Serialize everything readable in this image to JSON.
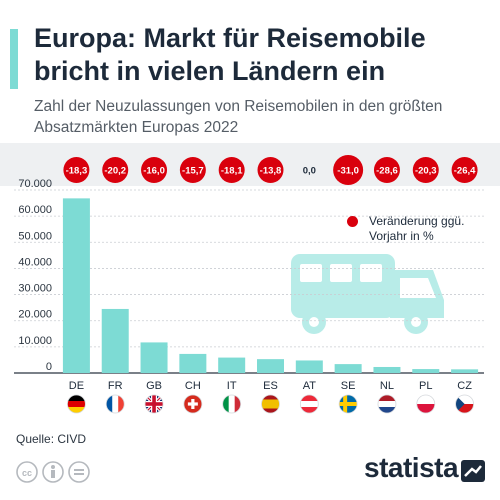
{
  "title": "Europa: Markt für Reisemobile bricht in vielen Ländern ein",
  "subtitle": "Zahl der Neuzulassungen von Reisemobilen in den größten Absatzmärkten Europas 2022",
  "legend_text": "Veränderung ggü. Vorjahr in %",
  "source": "Quelle: CIVD",
  "brand": "statista",
  "icons": {
    "license": [
      "creative-commons-icon",
      "attribution-icon",
      "no-derivatives-icon"
    ],
    "illustration": "camper-van-icon",
    "logo": "statista-logo-icon"
  },
  "colors": {
    "bar": "#7ddbd4",
    "negative_badge": "#d9000d",
    "neutral_badge_text": "#1d2a3a",
    "band": "#eef0f2",
    "illustration": "#b8ece8"
  },
  "chart_data": {
    "type": "bar",
    "categories": [
      "DE",
      "FR",
      "GB",
      "CH",
      "IT",
      "ES",
      "AT",
      "SE",
      "NL",
      "PL",
      "CZ"
    ],
    "values": [
      66800,
      24500,
      11700,
      7300,
      5900,
      5300,
      4800,
      3400,
      2300,
      1500,
      1400
    ],
    "change_pct": [
      "-18,3",
      "-20,2",
      "-16,0",
      "-15,7",
      "-18,1",
      "-13,8",
      "0,0",
      "-31,0",
      "-28,6",
      "-20,3",
      "-26,4"
    ],
    "flags": [
      "germany-flag-icon",
      "france-flag-icon",
      "uk-flag-icon",
      "switzerland-flag-icon",
      "italy-flag-icon",
      "spain-flag-icon",
      "austria-flag-icon",
      "sweden-flag-icon",
      "netherlands-flag-icon",
      "poland-flag-icon",
      "czech-flag-icon"
    ],
    "yticks": [
      "0",
      "10.000",
      "20.000",
      "30.000",
      "40.000",
      "50.000",
      "60.000",
      "70.000"
    ],
    "ylim": [
      0,
      70000
    ],
    "grid": true
  }
}
